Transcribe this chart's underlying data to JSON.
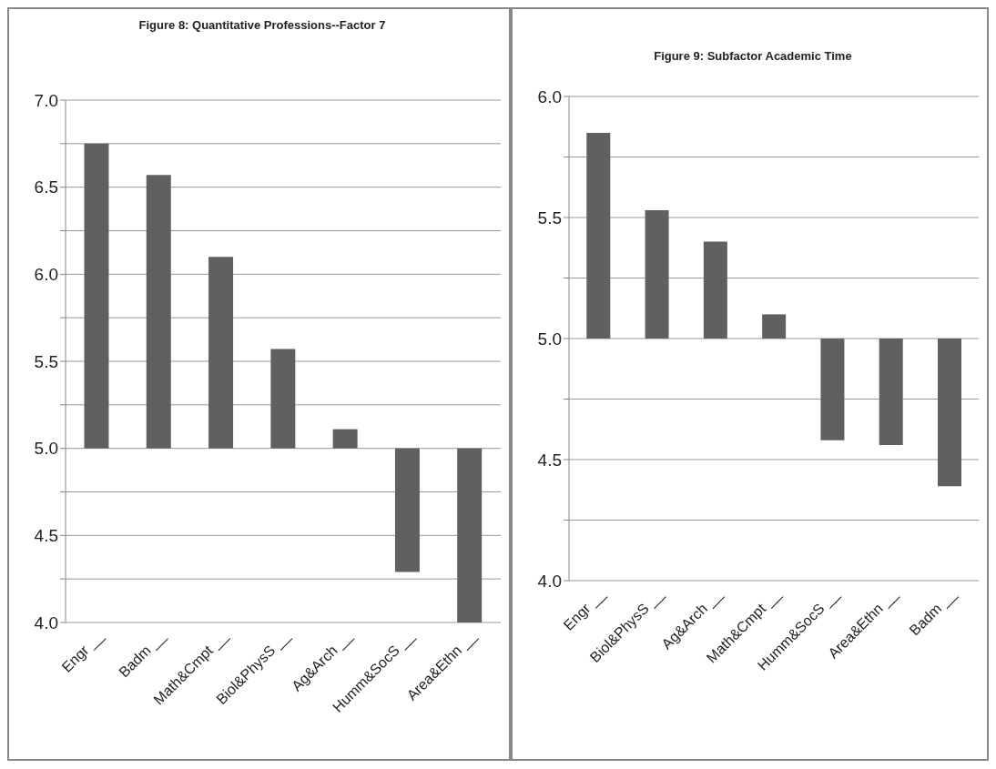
{
  "chart_data": [
    {
      "type": "bar",
      "title": "Figure 8: Quantitative Professions--Factor 7",
      "categories": [
        "Engr __",
        "Badm __",
        "Math&Cmpt __",
        "Biol&PhysS __",
        "Ag&Arch __",
        "Humm&SocS __",
        "Area&Ethn __"
      ],
      "base": [
        5,
        5,
        5,
        5,
        5,
        5,
        5
      ],
      "values": [
        1.75,
        1.57,
        1.1,
        0.57,
        0.11,
        -0.71,
        -1.0
      ],
      "color": "#606060",
      "ylim": [
        4,
        7
      ],
      "yticks": [
        {
          "value": 4,
          "label": "4.0"
        },
        {
          "value": 4.25,
          "label": null
        },
        {
          "value": 4.5,
          "label": "4.5"
        },
        {
          "value": 4.75,
          "label": null
        },
        {
          "value": 5,
          "label": "5.0"
        },
        {
          "value": 5.25,
          "label": null
        },
        {
          "value": 5.5,
          "label": "5.5"
        },
        {
          "value": 5.75,
          "label": null
        },
        {
          "value": 6,
          "label": "6.0"
        },
        {
          "value": 6.25,
          "label": null
        },
        {
          "value": 6.5,
          "label": "6.5"
        },
        {
          "value": 6.75,
          "label": null
        },
        {
          "value": 7,
          "label": "7.0"
        }
      ],
      "grid": "y"
    },
    {
      "type": "bar",
      "title": "Figure 9: Subfactor Academic Time",
      "categories": [
        "Engr __",
        "Biol&PhysS __",
        "Ag&Arch __",
        "Math&Cmpt __",
        "Humm&SocS __",
        "Area&Ethn __",
        "Badm __"
      ],
      "base": [
        5,
        5,
        5,
        5,
        5,
        5,
        5
      ],
      "values": [
        0.85,
        0.53,
        0.4,
        0.1,
        -0.42,
        -0.44,
        -0.61
      ],
      "color": "#606060",
      "ylim": [
        4,
        6
      ],
      "yticks": [
        {
          "value": 4,
          "label": "4.0"
        },
        {
          "value": 4.25,
          "label": null
        },
        {
          "value": 4.5,
          "label": "4.5"
        },
        {
          "value": 4.75,
          "label": null
        },
        {
          "value": 5,
          "label": "5.0"
        },
        {
          "value": 5.25,
          "label": null
        },
        {
          "value": 5.5,
          "label": "5.5"
        },
        {
          "value": 5.75,
          "label": null
        },
        {
          "value": 6,
          "label": "6.0"
        }
      ],
      "grid": "y"
    }
  ]
}
